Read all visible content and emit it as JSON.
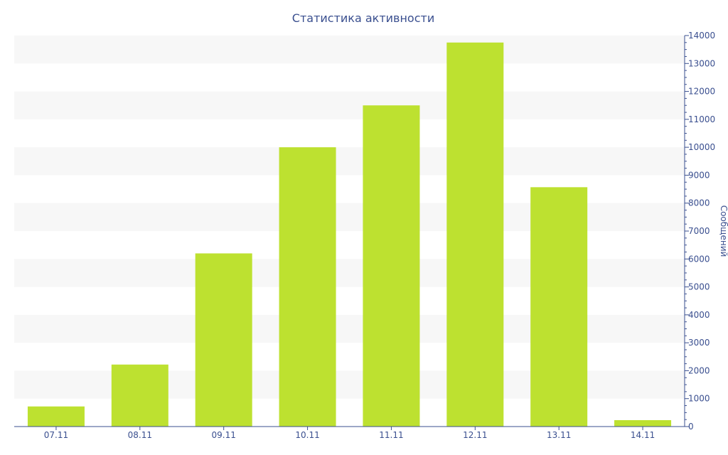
{
  "chart_data": {
    "type": "bar",
    "title": "Статистика активности",
    "xlabel": "",
    "ylabel": "Сообщений",
    "categories": [
      "07.11",
      "08.11",
      "09.11",
      "10.11",
      "11.11",
      "12.11",
      "13.11",
      "14.11"
    ],
    "values": [
      720,
      2220,
      6200,
      10000,
      11500,
      13750,
      8570,
      230
    ],
    "ylim": [
      0,
      14000
    ],
    "yticks": [
      0,
      1000,
      2000,
      3000,
      4000,
      5000,
      6000,
      7000,
      8000,
      9000,
      10000,
      11000,
      12000,
      13000,
      14000
    ],
    "y_axis_side": "right",
    "grid": "alternating horizontal bands",
    "colors": {
      "bar": "#bde130",
      "band": "#f7f7f7",
      "axis": "#3a4f8f",
      "text": "#3a4f8f"
    }
  }
}
